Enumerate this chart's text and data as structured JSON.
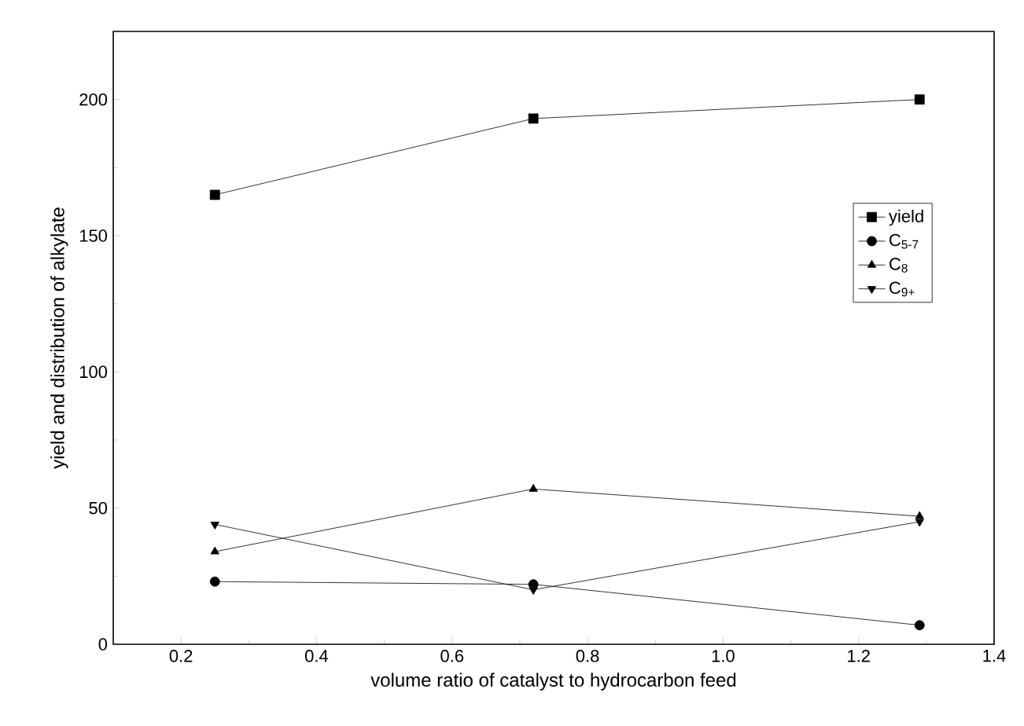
{
  "chart_data": {
    "type": "line",
    "xlabel": "volume ratio of catalyst to hydrocarbon feed",
    "ylabel": "yield and distribution of alkylate",
    "x": [
      0.25,
      0.72,
      1.29
    ],
    "series": [
      {
        "name": "yield",
        "color": "#000000",
        "marker": "square",
        "values": [
          165,
          193,
          200
        ]
      },
      {
        "name": "C$_{5-7}$",
        "color": "#000000",
        "marker": "circle",
        "values": [
          23,
          22,
          7
        ]
      },
      {
        "name": "C$_{8}$",
        "color": "#000000",
        "marker": "triangle",
        "values": [
          34,
          57,
          47
        ]
      },
      {
        "name": "C$_{9+}$",
        "color": "#000000",
        "marker": "triangle-down",
        "values": [
          44,
          20,
          45
        ]
      }
    ],
    "xlim": [
      0.1,
      1.4
    ],
    "ylim": [
      0,
      225
    ],
    "xticks": [
      0.2,
      0.4,
      0.6,
      0.8,
      {
        "value": 1.0,
        "label": "1.0"
      },
      1.2,
      1.4
    ],
    "yticks": [
      0,
      50,
      100,
      150,
      200
    ],
    "legend": "right",
    "grid": false,
    "line_style": "solid"
  }
}
